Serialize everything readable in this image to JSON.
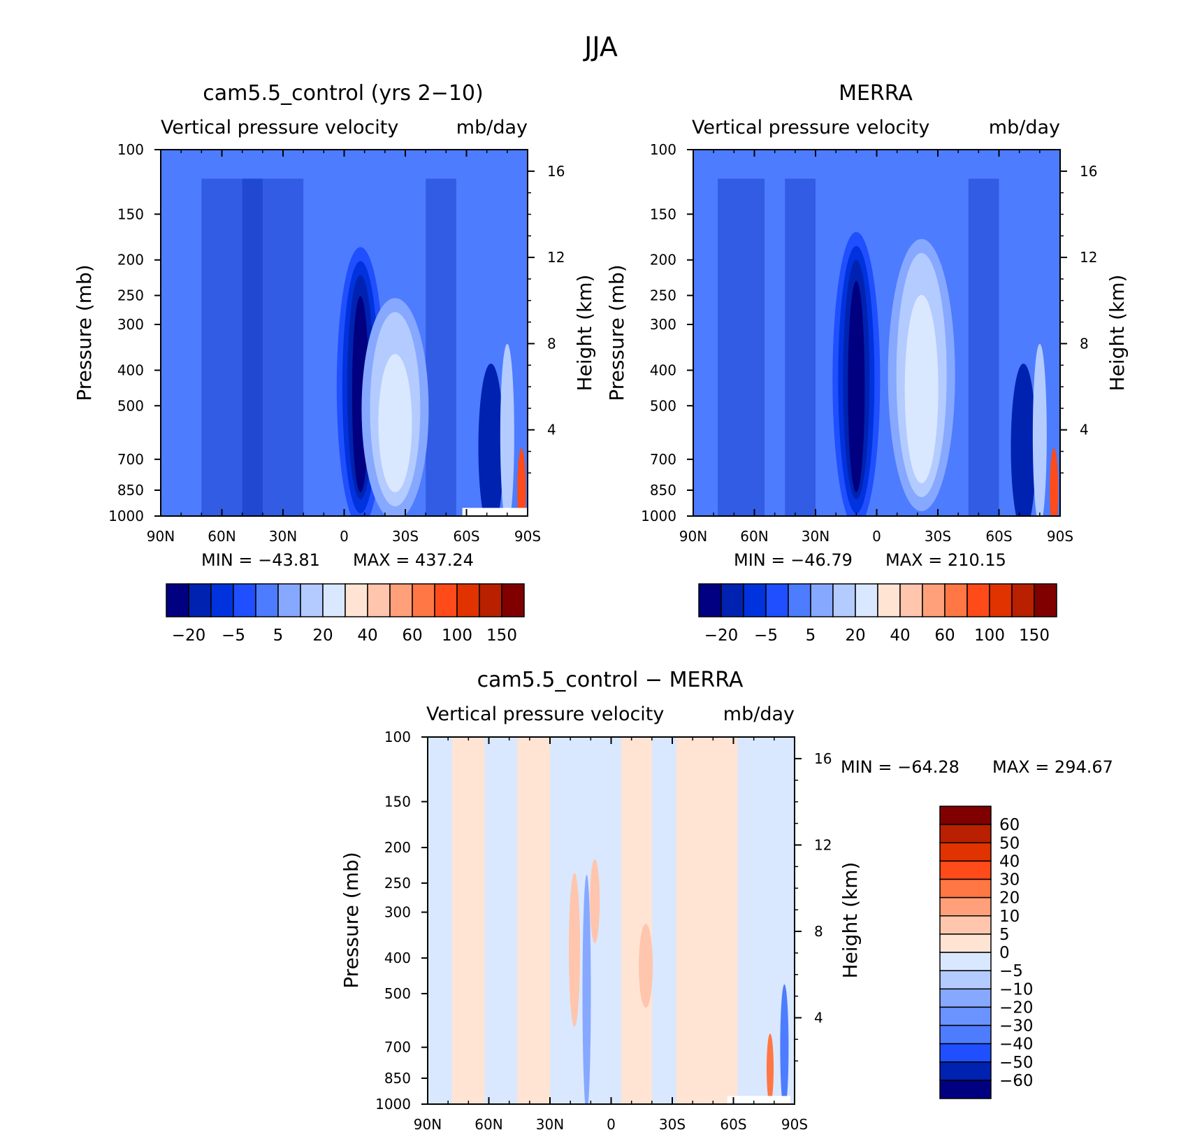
{
  "figure": {
    "title": "JJA"
  },
  "chart_data": [
    {
      "type": "heatmap",
      "title": "cam5.5_control (yrs 2−10)",
      "subtitle_left": "Vertical pressure velocity",
      "subtitle_right": "mb/day",
      "ylabel": "Pressure (mb)",
      "ylabel_right": "Height (km)",
      "x_ticks": [
        "90N",
        "60N",
        "30N",
        "0",
        "30S",
        "60S",
        "90S"
      ],
      "x_values": [
        90,
        60,
        30,
        0,
        -30,
        -60,
        -90
      ],
      "y_ticks": [
        "100",
        "150",
        "200",
        "250",
        "300",
        "400",
        "500",
        "700",
        "850",
        "1000"
      ],
      "y_values": [
        100,
        150,
        200,
        250,
        300,
        400,
        500,
        700,
        850,
        1000
      ],
      "yscale": "log",
      "y_right_ticks": [
        "16",
        "12",
        "8",
        "4"
      ],
      "y_right_values": [
        16,
        12,
        8,
        4
      ],
      "min_label": "MIN = −43.81",
      "max_label": "MAX = 437.24",
      "min": -43.81,
      "max": 437.24,
      "features": [
        {
          "lat": -8,
          "p_top": 220,
          "p_bot": 900,
          "level": 0
        },
        {
          "lat": -25,
          "p_top": 290,
          "p_bot": 900,
          "level": 7
        }
      ],
      "colorbar": {
        "orientation": "horizontal",
        "colors": [
          "#000080",
          "#0022b0",
          "#0033dd",
          "#1f4fff",
          "#4d7cff",
          "#87a8ff",
          "#b3cbff",
          "#d9e8ff",
          "#ffe4d4",
          "#ffc5ad",
          "#ffa07a",
          "#ff7744",
          "#ff4a1a",
          "#e03300",
          "#b82000",
          "#800000"
        ],
        "tick_labels": [
          "−20",
          "−5",
          "5",
          "20",
          "40",
          "60",
          "100",
          "150"
        ]
      }
    },
    {
      "type": "heatmap",
      "title": "MERRA",
      "subtitle_left": "Vertical pressure velocity",
      "subtitle_right": "mb/day",
      "ylabel": "Pressure (mb)",
      "ylabel_right": "Height (km)",
      "x_ticks": [
        "90N",
        "60N",
        "30N",
        "0",
        "30S",
        "60S",
        "90S"
      ],
      "x_values": [
        90,
        60,
        30,
        0,
        -30,
        -60,
        -90
      ],
      "y_ticks": [
        "100",
        "150",
        "200",
        "250",
        "300",
        "400",
        "500",
        "700",
        "850",
        "1000"
      ],
      "y_values": [
        100,
        150,
        200,
        250,
        300,
        400,
        500,
        700,
        850,
        1000
      ],
      "yscale": "log",
      "y_right_ticks": [
        "16",
        "12",
        "8",
        "4"
      ],
      "y_right_values": [
        16,
        12,
        8,
        4
      ],
      "min_label": "MIN = −46.79",
      "max_label": "MAX = 210.15",
      "min": -46.79,
      "max": 210.15,
      "features": [
        {
          "lat": 10,
          "p_top": 200,
          "p_bot": 900,
          "level": 0
        },
        {
          "lat": -22,
          "p_top": 200,
          "p_bot": 850,
          "level": 6
        }
      ],
      "colorbar": {
        "orientation": "horizontal",
        "colors": [
          "#000080",
          "#0022b0",
          "#0033dd",
          "#1f4fff",
          "#4d7cff",
          "#87a8ff",
          "#b3cbff",
          "#d9e8ff",
          "#ffe4d4",
          "#ffc5ad",
          "#ffa07a",
          "#ff7744",
          "#ff4a1a",
          "#e03300",
          "#b82000",
          "#800000"
        ],
        "tick_labels": [
          "−20",
          "−5",
          "5",
          "20",
          "40",
          "60",
          "100",
          "150"
        ]
      }
    },
    {
      "type": "heatmap",
      "title": "cam5.5_control − MERRA",
      "subtitle_left": "Vertical pressure velocity",
      "subtitle_right": "mb/day",
      "ylabel": "Pressure (mb)",
      "ylabel_right": "Height (km)",
      "x_ticks": [
        "90N",
        "60N",
        "30N",
        "0",
        "30S",
        "60S",
        "90S"
      ],
      "x_values": [
        90,
        60,
        30,
        0,
        -30,
        -60,
        -90
      ],
      "y_ticks": [
        "100",
        "150",
        "200",
        "250",
        "300",
        "400",
        "500",
        "700",
        "850",
        "1000"
      ],
      "y_values": [
        100,
        150,
        200,
        250,
        300,
        400,
        500,
        700,
        850,
        1000
      ],
      "yscale": "log",
      "y_right_ticks": [
        "16",
        "12",
        "8",
        "4"
      ],
      "y_right_values": [
        16,
        12,
        8,
        4
      ],
      "min_label": "MIN = −64.28",
      "max_label": "MAX = 294.67",
      "min": -64.28,
      "max": 294.67,
      "features": [
        {
          "lat": -60,
          "p_top": 100,
          "p_bot": 1000,
          "level": 8
        }
      ],
      "colorbar": {
        "orientation": "vertical",
        "colors": [
          "#800000",
          "#b82000",
          "#e03300",
          "#ff4a1a",
          "#ff7744",
          "#ffa07a",
          "#ffc5ad",
          "#ffe4d4",
          "#d9e8ff",
          "#b3cbff",
          "#87a8ff",
          "#6b93ff",
          "#4d7cff",
          "#1f4fff",
          "#0022b0",
          "#000080"
        ],
        "tick_labels": [
          "60",
          "50",
          "40",
          "30",
          "20",
          "10",
          "5",
          "0",
          "−5",
          "−10",
          "−20",
          "−30",
          "−40",
          "−50",
          "−60"
        ]
      }
    }
  ]
}
